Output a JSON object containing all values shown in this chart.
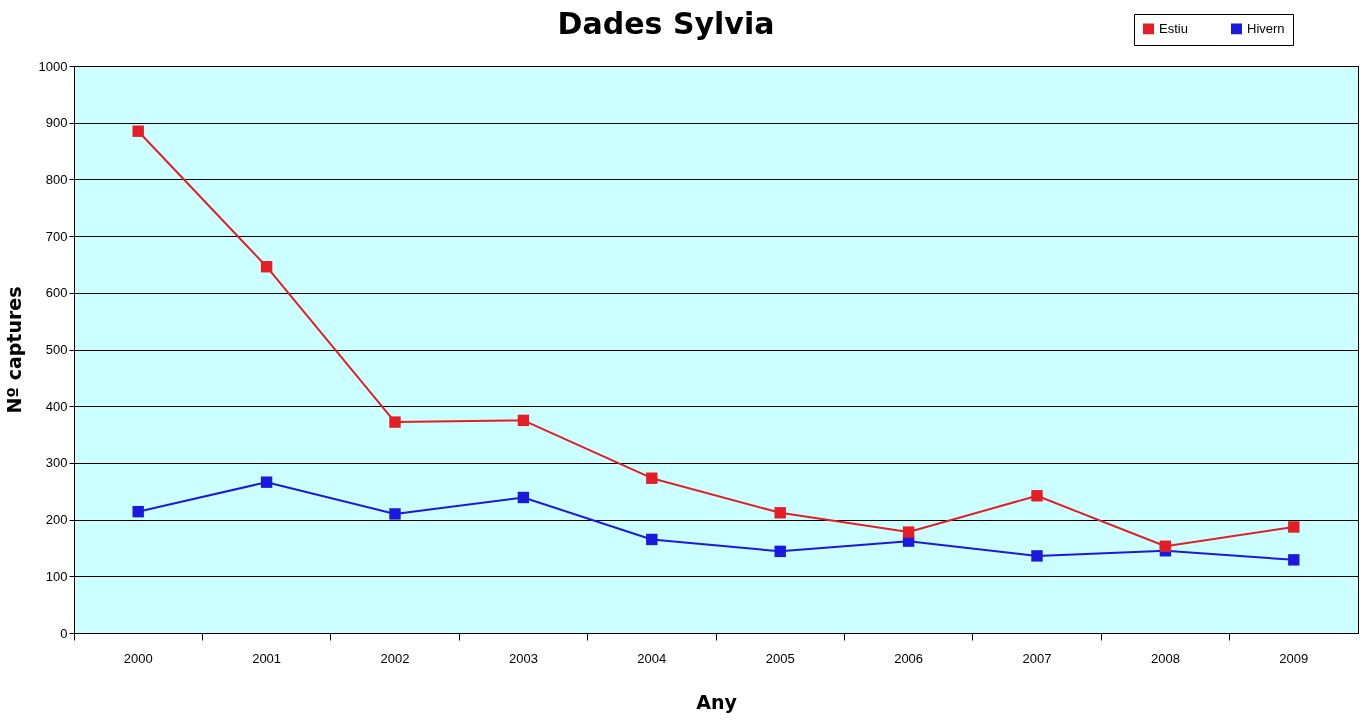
{
  "chart_data": {
    "type": "line",
    "title": "Dades Sylvia",
    "xlabel": "Any",
    "ylabel": "Nº captures",
    "categories": [
      "2000",
      "2001",
      "2002",
      "2003",
      "2004",
      "2005",
      "2006",
      "2007",
      "2008",
      "2009"
    ],
    "series": [
      {
        "name": "Estiu",
        "color": "#e41e26",
        "values": [
          885,
          646,
          372,
          375,
          273,
          212,
          178,
          242,
          153,
          187
        ]
      },
      {
        "name": "Hivern",
        "color": "#1a1adf",
        "values": [
          214,
          266,
          210,
          239,
          165,
          144,
          162,
          136,
          145,
          129
        ]
      }
    ],
    "ylim": [
      0,
      1000
    ],
    "yticks": [
      0,
      100,
      200,
      300,
      400,
      500,
      600,
      700,
      800,
      900,
      1000
    ],
    "grid": "y",
    "legend": "top right",
    "marker": "square",
    "line_style": "solid"
  }
}
